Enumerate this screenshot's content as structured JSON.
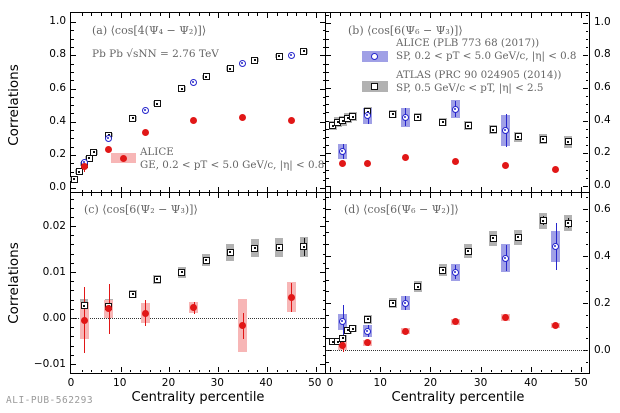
{
  "figure": {
    "ylabel": "Correlations",
    "xlabel": "Centrality percentile",
    "watermark": "ALI-PUB-562293"
  },
  "colors": {
    "alice_ge_red": "#e11717",
    "alice_ge_band": "#f7b6b6",
    "alice_sp_blue": "#2727cc",
    "alice_sp_band": "#a0a0e6",
    "atlas_black": "#111111",
    "atlas_band": "#b2b2b2",
    "annotation_gray": "#666666",
    "watermark_gray": "#9a9a9a"
  },
  "legend_a": {
    "label": "ALICE",
    "detail": "GE, 0.2 < pT < 5.0 GeV/c, |η| < 0.8"
  },
  "legend_b": [
    {
      "label": "ALICE (PLB 773 68 (2017))",
      "detail": "SP, 0.2 < pT < 5.0 GeV/c, |η| < 0.8"
    },
    {
      "label": "ATLAS (PRC 90 024905 (2014))",
      "detail": "SP, 0.5 GeV/c < pT, |η| < 2.5"
    }
  ],
  "chart_data": [
    {
      "id": "a",
      "type": "scatter",
      "title": "(a) ⟨cos[4(Ψ₄ − Ψ₂)]⟩",
      "subtitle": "Pb Pb √sNN = 2.76 TeV",
      "xlim": [
        -0.2,
        52.3
      ],
      "ylim": [
        -0.035,
        1.055
      ],
      "x_ticks": [
        0,
        10,
        20,
        30,
        40,
        50
      ],
      "x_minor_step": 2,
      "x_labels_show": false,
      "y_ticks": [
        0,
        0.2,
        0.4,
        0.6,
        0.8,
        1.0
      ],
      "y_tick_labels": [
        "0.0",
        "0.2",
        "0.4",
        "0.6",
        "0.8",
        "1.0"
      ],
      "y_minor_step": 0.05,
      "y_label_side": "left",
      "zero_line": false,
      "series": [
        {
          "name": "ATLAS SP",
          "marker": "boxdot",
          "color": "#111111",
          "band_color": "#b2b2b2",
          "band_w": 8,
          "x": [
            0.5,
            1.5,
            2.5,
            3.5,
            4.5,
            7.5,
            12.5,
            17.5,
            22.5,
            27.5,
            32.5,
            37.5,
            42.5,
            47.5
          ],
          "y": [
            0.055,
            0.1,
            0.145,
            0.18,
            0.215,
            0.32,
            0.42,
            0.51,
            0.6,
            0.67,
            0.72,
            0.77,
            0.795,
            0.825
          ],
          "err": [
            0.008,
            0.008,
            0.008,
            0.008,
            0.008,
            0.008,
            0.008,
            0.008,
            0.008,
            0.008,
            0.008,
            0.008,
            0.008,
            0.008
          ],
          "band": [
            0.013,
            0.013,
            0.013,
            0.013,
            0.013,
            0.013,
            0.013,
            0.013,
            0.013,
            0.013,
            0.013,
            0.013,
            0.014,
            0.015
          ]
        },
        {
          "name": "ALICE SP",
          "marker": "circle-open",
          "color": "#2727cc",
          "band_color": "#a0a0e6",
          "band_w": 9,
          "x": [
            2.5,
            7.5,
            15,
            25,
            35,
            45
          ],
          "y": [
            0.155,
            0.3,
            0.47,
            0.635,
            0.75,
            0.8
          ],
          "err": null,
          "band": null
        },
        {
          "name": "ALICE GE",
          "marker": "circle-fill",
          "color": "#e11717",
          "band_color": "#f7b6b6",
          "band_w": 9,
          "x": [
            2.5,
            7.5,
            15,
            25,
            35,
            45
          ],
          "y": [
            0.13,
            0.235,
            0.335,
            0.41,
            0.425,
            0.41
          ],
          "err": [
            0.035,
            0.012,
            0.01,
            0.01,
            0.01,
            0.01
          ],
          "band": null
        }
      ]
    },
    {
      "id": "b",
      "type": "scatter",
      "title": "(b) ⟨cos[6(Ψ₆ − Ψ₃)]⟩",
      "xlim": [
        -0.8,
        51.8
      ],
      "ylim": [
        -0.05,
        1.06
      ],
      "x_ticks": [
        0,
        10,
        20,
        30,
        40,
        50
      ],
      "x_minor_step": 2,
      "x_labels_show": false,
      "y_ticks": [
        0,
        0.2,
        0.4,
        0.6,
        0.8,
        1.0
      ],
      "y_tick_labels": [
        "0.0",
        "0.2",
        "0.4",
        "0.6",
        "0.8",
        "1.0"
      ],
      "y_minor_step": 0.05,
      "y_label_side": "right",
      "zero_line": false,
      "series": [
        {
          "name": "ATLAS SP",
          "marker": "boxdot",
          "color": "#111111",
          "band_color": "#b2b2b2",
          "band_w": 8,
          "x": [
            0.5,
            1.5,
            2.5,
            3.5,
            4.5,
            7.5,
            12.5,
            17.5,
            22.5,
            27.5,
            32.5,
            37.5,
            42.5,
            47.5
          ],
          "y": [
            0.37,
            0.39,
            0.4,
            0.415,
            0.425,
            0.455,
            0.44,
            0.42,
            0.39,
            0.37,
            0.345,
            0.3,
            0.285,
            0.27
          ],
          "err": [
            0.01,
            0.01,
            0.01,
            0.01,
            0.01,
            0.012,
            0.01,
            0.01,
            0.01,
            0.01,
            0.012,
            0.012,
            0.015,
            0.02
          ],
          "band": [
            0.03,
            0.03,
            0.03,
            0.03,
            0.03,
            0.03,
            0.025,
            0.025,
            0.025,
            0.025,
            0.028,
            0.03,
            0.03,
            0.035
          ]
        },
        {
          "name": "ALICE SP",
          "marker": "circle-open",
          "color": "#2727cc",
          "band_color": "#a0a0e6",
          "band_w": 9,
          "x": [
            2.5,
            7.5,
            15,
            25,
            35
          ],
          "y": [
            0.21,
            0.43,
            0.42,
            0.47,
            0.34
          ],
          "err": [
            0.045,
            0.05,
            0.055,
            0.05,
            0.1
          ],
          "band": [
            0.045,
            0.05,
            0.06,
            0.055,
            0.095
          ]
        },
        {
          "name": "ALICE GE",
          "marker": "circle-fill",
          "color": "#e11717",
          "band_color": "#f7b6b6",
          "band_w": 9,
          "x": [
            2.5,
            7.5,
            15,
            25,
            35,
            45
          ],
          "y": [
            0.14,
            0.135,
            0.175,
            0.15,
            0.125,
            0.1
          ],
          "err": [
            0.012,
            0.012,
            0.012,
            0.012,
            0.012,
            0.012
          ],
          "band": null
        }
      ]
    },
    {
      "id": "c",
      "type": "scatter",
      "title": "(c) ⟨cos[6(Ψ₂ − Ψ₃)]⟩",
      "xlim": [
        -0.2,
        52.3
      ],
      "ylim": [
        -0.0122,
        0.0272
      ],
      "x_ticks": [
        0,
        10,
        20,
        30,
        40,
        50
      ],
      "x_minor_step": 2,
      "x_labels_show": true,
      "x_tick_labels": [
        "0",
        "10",
        "20",
        "30",
        "40",
        "50"
      ],
      "y_ticks": [
        -0.01,
        0,
        0.01,
        0.02
      ],
      "y_tick_labels": [
        "−0.01",
        "0.00",
        "0.01",
        "0.02"
      ],
      "y_minor_step": 0.002,
      "y_label_side": "left",
      "zero_line": true,
      "series": [
        {
          "name": "ATLAS SP",
          "marker": "boxdot",
          "color": "#111111",
          "band_color": "#b2b2b2",
          "band_w": 8,
          "x": [
            2.5,
            7.5,
            12.5,
            17.5,
            22.5,
            27.5,
            32.5,
            37.5,
            42.5,
            47.5
          ],
          "y": [
            0.0027,
            0.0026,
            0.0052,
            0.0084,
            0.0099,
            0.0126,
            0.0143,
            0.0152,
            0.0153,
            0.0155
          ],
          "err": [
            0.0005,
            0.0005,
            0.0004,
            0.0005,
            0.0005,
            0.0005,
            0.0006,
            0.0007,
            0.0008,
            0.002
          ],
          "band": [
            0.0014,
            0.0015,
            0.0009,
            0.001,
            0.0012,
            0.0013,
            0.0018,
            0.002,
            0.0021,
            0.0022
          ]
        },
        {
          "name": "ALICE GE",
          "marker": "circle-fill",
          "color": "#e11717",
          "band_color": "#f7b6b6",
          "band_w": 9,
          "x": [
            2.5,
            7.5,
            15,
            25,
            35,
            45
          ],
          "y": [
            -0.0005,
            0.002,
            0.001,
            0.0022,
            -0.0017,
            0.0045
          ],
          "err": [
            0.0072,
            0.0055,
            0.0028,
            0.0013,
            0.0028,
            0.0032
          ],
          "band": [
            0.004,
            0.002,
            0.0022,
            0.0012,
            0.0058,
            0.0033
          ]
        }
      ]
    },
    {
      "id": "d",
      "type": "scatter",
      "title": "(d) ⟨cos[6(Ψ₆ − Ψ₂)]⟩",
      "xlim": [
        -0.8,
        51.8
      ],
      "ylim": [
        -0.102,
        0.668
      ],
      "x_ticks": [
        0,
        10,
        20,
        30,
        40,
        50
      ],
      "x_minor_step": 2,
      "x_labels_show": true,
      "x_tick_labels": [
        "0",
        "10",
        "20",
        "30",
        "40",
        "50"
      ],
      "y_ticks": [
        0,
        0.2,
        0.4,
        0.6
      ],
      "y_tick_labels": [
        "0.0",
        "0.2",
        "0.4",
        "0.6"
      ],
      "y_minor_step": 0.05,
      "y_label_side": "right",
      "zero_line": true,
      "series": [
        {
          "name": "ATLAS SP",
          "marker": "boxdot",
          "color": "#111111",
          "band_color": "#b2b2b2",
          "band_w": 8,
          "x": [
            0.5,
            1.5,
            2.5,
            3.5,
            4.5,
            7.5,
            12.5,
            17.5,
            22.5,
            27.5,
            32.5,
            37.5,
            42.5,
            47.5
          ],
          "y": [
            0.035,
            0.035,
            0.05,
            0.085,
            0.09,
            0.13,
            0.2,
            0.27,
            0.34,
            0.42,
            0.475,
            0.48,
            0.55,
            0.54
          ],
          "err": [
            0.008,
            0.008,
            0.008,
            0.008,
            0.008,
            0.008,
            0.01,
            0.01,
            0.01,
            0.012,
            0.012,
            0.015,
            0.02,
            0.02
          ],
          "band": [
            0.01,
            0.01,
            0.012,
            0.015,
            0.015,
            0.018,
            0.022,
            0.025,
            0.027,
            0.03,
            0.032,
            0.032,
            0.035,
            0.035
          ]
        },
        {
          "name": "ALICE SP",
          "marker": "circle-open",
          "color": "#2727cc",
          "band_color": "#a0a0e6",
          "band_w": 9,
          "x": [
            2.5,
            7.5,
            15,
            25,
            35,
            45
          ],
          "y": [
            0.12,
            0.08,
            0.2,
            0.33,
            0.39,
            0.44
          ],
          "err": [
            0.07,
            0.025,
            0.03,
            0.03,
            0.055,
            0.1
          ],
          "band": [
            0.035,
            0.025,
            0.03,
            0.035,
            0.06,
            0.065
          ]
        },
        {
          "name": "ALICE GE",
          "marker": "circle-fill",
          "color": "#e11717",
          "band_color": "#f7b6b6",
          "band_w": 9,
          "x": [
            2.5,
            7.5,
            15,
            25,
            35,
            45
          ],
          "y": [
            0.02,
            0.03,
            0.08,
            0.12,
            0.14,
            0.105
          ],
          "err": [
            0.03,
            0.012,
            0.01,
            0.01,
            0.01,
            0.01
          ],
          "band": [
            0.02,
            0.012,
            0.012,
            0.012,
            0.015,
            0.012
          ]
        }
      ]
    }
  ]
}
